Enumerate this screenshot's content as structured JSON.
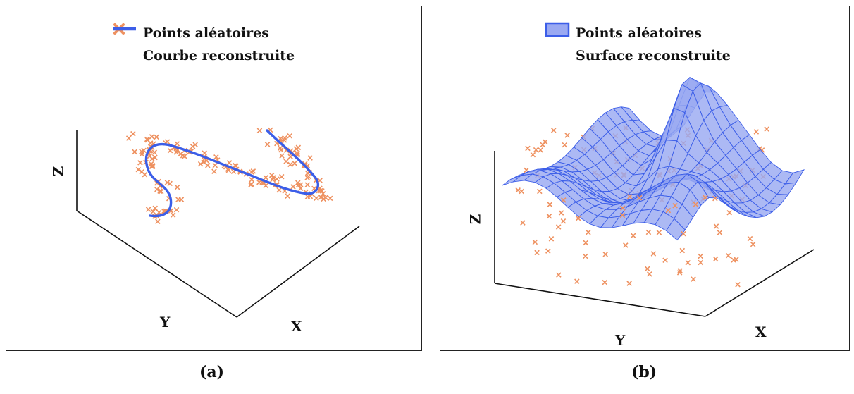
{
  "colors": {
    "points": "#ee9160",
    "curve": "#3c5ee8",
    "surface_fill": "#9aa9f2",
    "surface_line": "#3c5ee8",
    "frame": "#111111"
  },
  "panel_a": {
    "legend": {
      "points_label": "Points aléatoires",
      "curve_label": "Courbe reconstruite"
    },
    "axes": {
      "x": "X",
      "y": "Y",
      "z": "Z"
    },
    "caption": "(a)"
  },
  "panel_b": {
    "legend": {
      "points_label": "Points aléatoires",
      "surface_label": "Surface reconstruite"
    },
    "axes": {
      "x": "X",
      "y": "Y",
      "z": "Z"
    },
    "caption": "(b)"
  }
}
